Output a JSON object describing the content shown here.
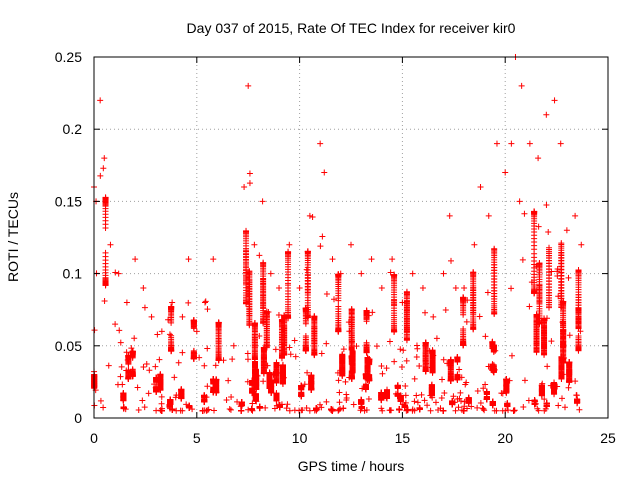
{
  "chart_data": {
    "type": "scatter",
    "title": "Day 037 of 2015, Rate Of TEC Index for receiver kir0",
    "xlabel": "GPS time / hours",
    "ylabel": "ROTI / TECUs",
    "xlim": [
      0,
      25
    ],
    "ylim": [
      0,
      0.25
    ],
    "xticks": [
      0,
      5,
      10,
      15,
      20,
      25
    ],
    "xtick_labels": [
      "0",
      "5",
      "10",
      "15",
      "20",
      "25"
    ],
    "yticks": [
      0,
      0.05,
      0.1,
      0.15,
      0.2,
      0.25
    ],
    "ytick_labels": [
      "0",
      "0.05",
      "0.1",
      "0.15",
      "0.2",
      "0.25"
    ],
    "grid": true,
    "marker": "plus",
    "color": "#ff0000",
    "series": [
      {
        "name": "ROTI",
        "envelope_time_hours": [
          0.0,
          0.1,
          0.3,
          0.5,
          0.8,
          1.2,
          1.6,
          2.0,
          2.4,
          2.8,
          3.3,
          3.8,
          4.3,
          4.6,
          5.0,
          5.4,
          5.8,
          6.3,
          6.8,
          7.3,
          7.5,
          7.8,
          8.2,
          8.6,
          9.0,
          9.5,
          10.0,
          10.5,
          11.0,
          11.2,
          11.6,
          12.0,
          12.5,
          13.0,
          13.5,
          14.0,
          14.5,
          15.0,
          15.5,
          16.0,
          16.5,
          17.0,
          17.3,
          17.6,
          18.0,
          18.5,
          18.8,
          19.2,
          19.6,
          20.0,
          20.3,
          20.5,
          20.8,
          21.2,
          21.6,
          22.0,
          22.4,
          22.7,
          23.0,
          23.4,
          23.7
        ],
        "envelope_max_roti": [
          0.16,
          0.15,
          0.22,
          0.18,
          0.12,
          0.1,
          0.08,
          0.11,
          0.09,
          0.07,
          0.06,
          0.08,
          0.07,
          0.11,
          0.06,
          0.08,
          0.11,
          0.04,
          0.05,
          0.16,
          0.23,
          0.12,
          0.15,
          0.1,
          0.09,
          0.12,
          0.09,
          0.14,
          0.19,
          0.17,
          0.11,
          0.1,
          0.12,
          0.1,
          0.11,
          0.09,
          0.11,
          0.08,
          0.1,
          0.09,
          0.07,
          0.1,
          0.14,
          0.09,
          0.09,
          0.12,
          0.16,
          0.14,
          0.19,
          0.17,
          0.19,
          0.25,
          0.23,
          0.19,
          0.18,
          0.21,
          0.22,
          0.19,
          0.13,
          0.14,
          0.12
        ],
        "typical_floor_roti": 0.005
      }
    ]
  }
}
